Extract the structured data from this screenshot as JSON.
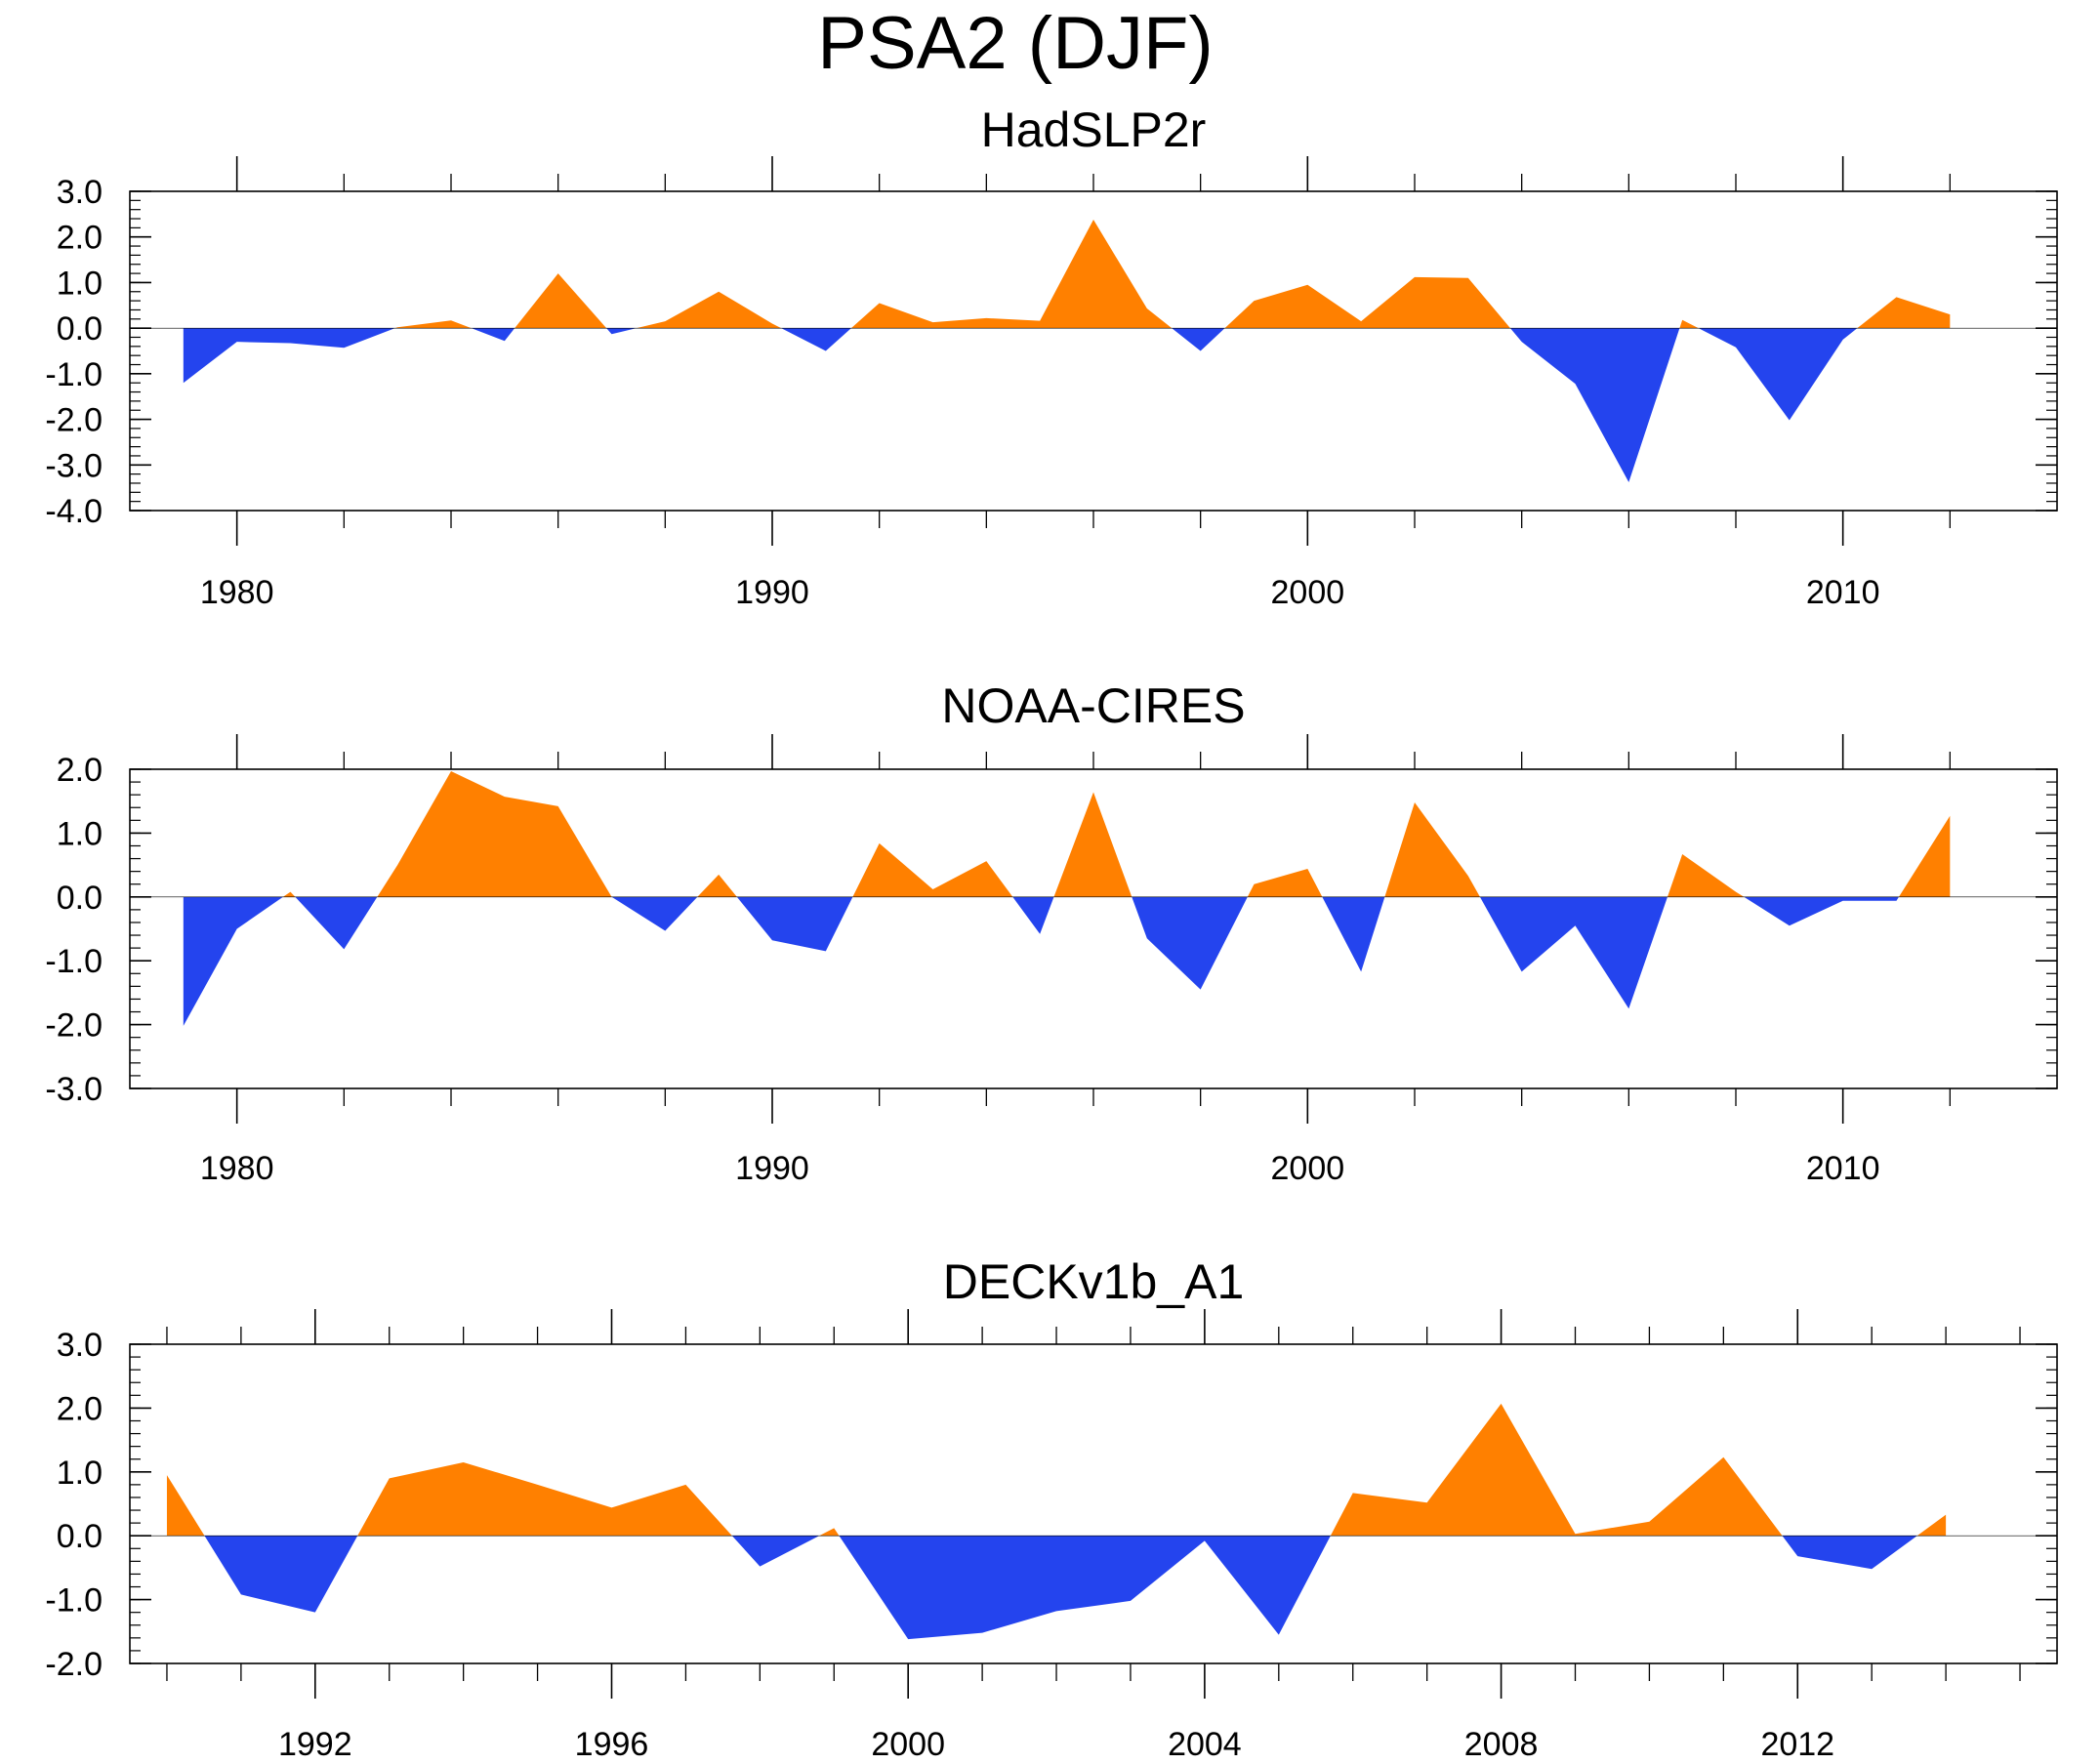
{
  "title": "PSA2 (DJF)",
  "colors": {
    "positive": "#ff8000",
    "negative": "#2444ee",
    "axis": "#000000",
    "zero_line": "#000000"
  },
  "chart_data": [
    {
      "type": "area",
      "title": "HadSLP2r",
      "xlabel": "",
      "ylabel": "",
      "xlim": [
        1978,
        2014
      ],
      "ylim": [
        -4.0,
        3.0
      ],
      "yticks": [
        3.0,
        2.0,
        1.0,
        0.0,
        -1.0,
        -2.0,
        -3.0,
        -4.0
      ],
      "ytick_labels": [
        "3.0",
        "2.0",
        "1.0",
        "0.0",
        "-1.0",
        "-2.0",
        "-3.0",
        "-4.0"
      ],
      "y_minor_step": 0.2,
      "xticks_major": [
        1980,
        1990,
        2000,
        2010
      ],
      "xtick_labels": [
        "1980",
        "1990",
        "2000",
        "2010"
      ],
      "xticks_minor": [
        1982,
        1984,
        1986,
        1988,
        1992,
        1994,
        1996,
        1998,
        2002,
        2004,
        2006,
        2008,
        2012
      ],
      "x": [
        1979,
        1980,
        1981,
        1982,
        1983,
        1984,
        1985,
        1986,
        1987,
        1988,
        1989,
        1990,
        1991,
        1992,
        1993,
        1994,
        1995,
        1996,
        1997,
        1998,
        1999,
        2000,
        2001,
        2002,
        2003,
        2004,
        2005,
        2006,
        2007,
        2008,
        2009,
        2010,
        2011,
        2012
      ],
      "values": [
        -1.2,
        -0.3,
        -0.33,
        -0.43,
        0.02,
        0.17,
        -0.28,
        1.2,
        -0.13,
        0.15,
        0.8,
        0.1,
        -0.5,
        0.55,
        0.13,
        0.22,
        0.16,
        2.38,
        0.43,
        -0.5,
        0.6,
        0.95,
        0.15,
        1.12,
        1.1,
        -0.3,
        -1.22,
        -3.38,
        0.18,
        -0.42,
        -2.02,
        -0.25,
        0.68,
        0.3
      ]
    },
    {
      "type": "area",
      "title": "NOAA-CIRES",
      "xlabel": "",
      "ylabel": "",
      "xlim": [
        1978,
        2014
      ],
      "ylim": [
        -3.0,
        2.0
      ],
      "yticks": [
        2.0,
        1.0,
        0.0,
        -1.0,
        -2.0,
        -3.0
      ],
      "ytick_labels": [
        "2.0",
        "1.0",
        "0.0",
        "-1.0",
        "-2.0",
        "-3.0"
      ],
      "y_minor_step": 0.2,
      "xticks_major": [
        1980,
        1990,
        2000,
        2010
      ],
      "xtick_labels": [
        "1980",
        "1990",
        "2000",
        "2010"
      ],
      "xticks_minor": [
        1982,
        1984,
        1986,
        1988,
        1992,
        1994,
        1996,
        1998,
        2002,
        2004,
        2006,
        2008,
        2012
      ],
      "x": [
        1979,
        1980,
        1981,
        1982,
        1983,
        1984,
        1985,
        1986,
        1987,
        1988,
        1989,
        1990,
        1991,
        1992,
        1993,
        1994,
        1995,
        1996,
        1997,
        1998,
        1999,
        2000,
        2001,
        2002,
        2003,
        2004,
        2005,
        2006,
        2007,
        2008,
        2009,
        2010,
        2011,
        2012
      ],
      "values": [
        -2.02,
        -0.5,
        0.08,
        -0.82,
        0.5,
        1.97,
        1.57,
        1.42,
        0.0,
        -0.53,
        0.35,
        -0.68,
        -0.85,
        0.84,
        0.12,
        0.56,
        -0.58,
        1.64,
        -0.65,
        -1.45,
        0.2,
        0.44,
        -1.17,
        1.48,
        0.33,
        -1.17,
        -0.45,
        -1.75,
        0.67,
        0.08,
        -0.45,
        -0.06,
        -0.06,
        1.27
      ]
    },
    {
      "type": "area",
      "title": "DECKv1b_A1",
      "xlabel": "",
      "ylabel": "",
      "xlim": [
        1989.5,
        2015.5
      ],
      "ylim": [
        -2.0,
        3.0
      ],
      "yticks": [
        3.0,
        2.0,
        1.0,
        0.0,
        -1.0,
        -2.0
      ],
      "ytick_labels": [
        "3.0",
        "2.0",
        "1.0",
        "0.0",
        "-1.0",
        "-2.0"
      ],
      "y_minor_step": 0.2,
      "xticks_major": [
        1992,
        1996,
        2000,
        2004,
        2008,
        2012
      ],
      "xtick_labels": [
        "1992",
        "1996",
        "2000",
        "2004",
        "2008",
        "2012"
      ],
      "xticks_minor": [
        1990,
        1991,
        1993,
        1994,
        1995,
        1997,
        1998,
        1999,
        2001,
        2002,
        2003,
        2005,
        2006,
        2007,
        2009,
        2010,
        2011,
        2013,
        2014,
        2015
      ],
      "x": [
        1990,
        1991,
        1992,
        1993,
        1994,
        1995,
        1996,
        1997,
        1998,
        1999,
        2000,
        2001,
        2002,
        2003,
        2004,
        2005,
        2006,
        2007,
        2008,
        2009,
        2010,
        2011,
        2012,
        2013,
        2014
      ],
      "values": [
        0.95,
        -0.92,
        -1.2,
        0.9,
        1.15,
        0.8,
        0.44,
        0.8,
        -0.48,
        0.12,
        -1.62,
        -1.52,
        -1.18,
        -1.02,
        -0.08,
        -1.55,
        0.67,
        0.52,
        2.07,
        0.03,
        0.22,
        1.23,
        -0.32,
        -0.52,
        0.33
      ]
    }
  ]
}
